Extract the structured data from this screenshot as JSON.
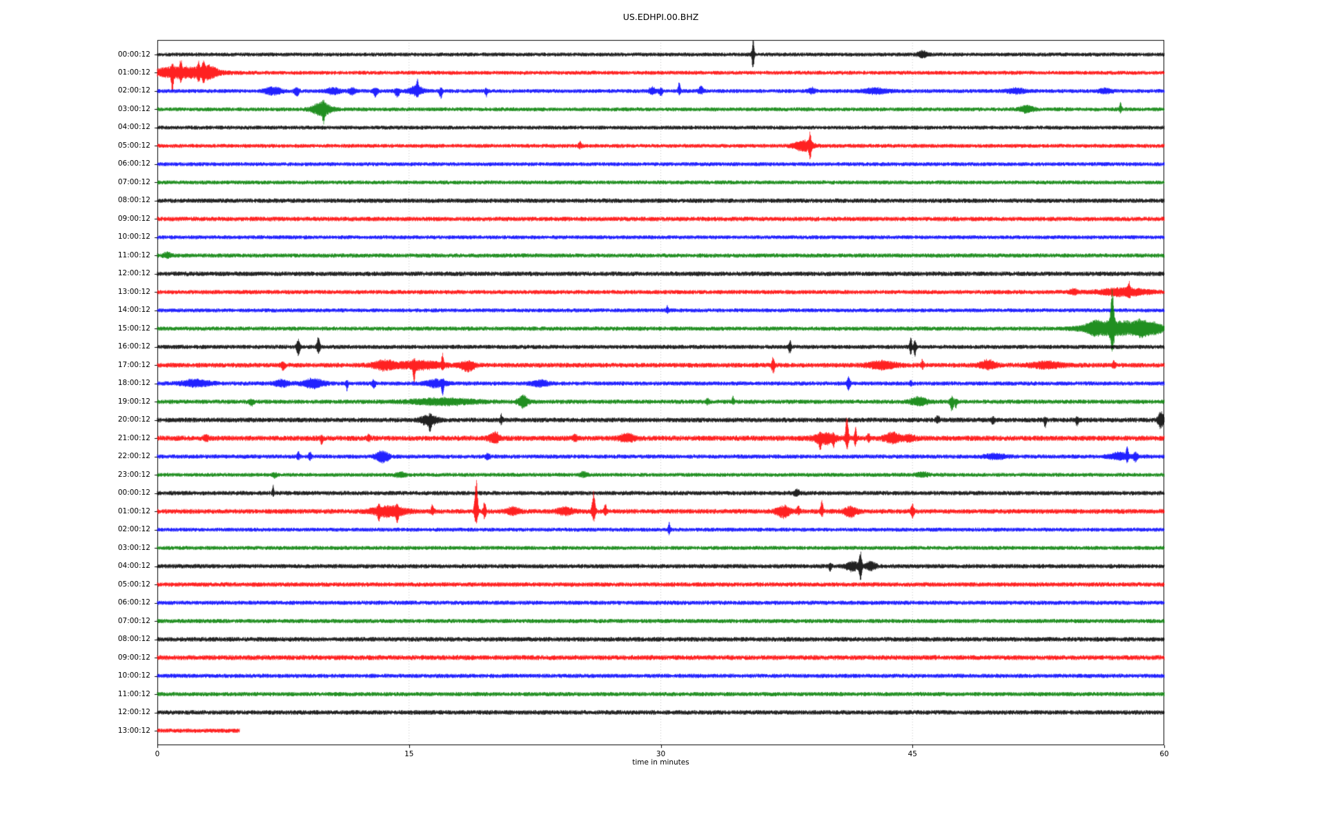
{
  "page": {
    "background": "#ffffff"
  },
  "chart_data": {
    "type": "line",
    "subtype": "seismogram-dayplot",
    "title": "US.EDHPI.00.BHZ",
    "xlabel": "time in minutes",
    "x_range": [
      0,
      60
    ],
    "x_ticks": [
      0,
      15,
      30,
      45,
      60
    ],
    "grid_x": [
      15,
      30,
      45
    ],
    "grid_on": true,
    "grid_color": "#b3b3b3",
    "axis_color": "#000000",
    "trace_color_cycle": [
      "#000000",
      "#ff0000",
      "#0000ff",
      "#008000"
    ],
    "color_map": {
      "k": "#000000",
      "r": "#ff0000",
      "b": "#0000ff",
      "g": "#008000"
    },
    "event_format": "[minute, width_minutes, up_px, down_px]",
    "rows": [
      {
        "label": "00:00:12",
        "color": "k",
        "noise": 3.0,
        "events": [
          [
            35.5,
            0.05,
            22,
            22
          ],
          [
            45.6,
            0.2,
            4,
            4
          ]
        ]
      },
      {
        "label": "01:00:12",
        "color": "r",
        "noise": 3.0,
        "events": [
          [
            1.5,
            1.3,
            8,
            7
          ],
          [
            0.9,
            0.05,
            7,
            26
          ],
          [
            1.4,
            0.05,
            13,
            8
          ],
          [
            2.45,
            0.05,
            12,
            9
          ],
          [
            2.75,
            0.05,
            14,
            10
          ],
          [
            3.1,
            0.3,
            7,
            6
          ]
        ]
      },
      {
        "label": "02:00:12",
        "color": "b",
        "noise": 3.0,
        "events": [
          [
            6.9,
            0.35,
            5,
            5
          ],
          [
            8.3,
            0.1,
            4,
            7
          ],
          [
            10.5,
            0.3,
            4,
            4
          ],
          [
            11.6,
            0.15,
            4,
            5
          ],
          [
            13.0,
            0.1,
            3,
            7
          ],
          [
            14.3,
            0.1,
            3,
            8
          ],
          [
            15.4,
            0.3,
            7,
            5
          ],
          [
            15.5,
            0.05,
            13,
            5
          ],
          [
            16.9,
            0.07,
            4,
            11
          ],
          [
            19.6,
            0.05,
            3,
            9
          ],
          [
            29.5,
            0.15,
            5,
            4
          ],
          [
            30.0,
            0.08,
            3,
            7
          ],
          [
            31.1,
            0.05,
            13,
            4
          ],
          [
            32.4,
            0.1,
            6,
            4
          ],
          [
            39.0,
            0.15,
            4,
            3
          ],
          [
            42.8,
            0.6,
            3,
            3
          ],
          [
            51.2,
            0.4,
            3,
            3
          ],
          [
            56.5,
            0.3,
            3,
            3
          ]
        ]
      },
      {
        "label": "03:00:12",
        "color": "g",
        "noise": 3.0,
        "events": [
          [
            9.8,
            0.4,
            9,
            9
          ],
          [
            9.9,
            0.05,
            5,
            13
          ],
          [
            51.8,
            0.3,
            5,
            4
          ],
          [
            57.4,
            0.05,
            10,
            4
          ]
        ]
      },
      {
        "label": "04:00:12",
        "color": "k",
        "noise": 3.0,
        "events": []
      },
      {
        "label": "05:00:12",
        "color": "r",
        "noise": 3.0,
        "events": [
          [
            25.2,
            0.08,
            5,
            3
          ],
          [
            38.5,
            0.4,
            7,
            7
          ],
          [
            38.9,
            0.05,
            17,
            19
          ]
        ]
      },
      {
        "label": "06:00:12",
        "color": "b",
        "noise": 3.0,
        "events": []
      },
      {
        "label": "07:00:12",
        "color": "g",
        "noise": 3.0,
        "events": []
      },
      {
        "label": "08:00:12",
        "color": "k",
        "noise": 3.4,
        "events": []
      },
      {
        "label": "09:00:12",
        "color": "r",
        "noise": 3.4,
        "events": []
      },
      {
        "label": "10:00:12",
        "color": "b",
        "noise": 3.0,
        "events": []
      },
      {
        "label": "11:00:12",
        "color": "g",
        "noise": 3.2,
        "events": [
          [
            0.6,
            0.15,
            4,
            3
          ]
        ]
      },
      {
        "label": "12:00:12",
        "color": "k",
        "noise": 3.5,
        "events": []
      },
      {
        "label": "13:00:12",
        "color": "r",
        "noise": 3.2,
        "events": [
          [
            54.6,
            0.2,
            4,
            3
          ],
          [
            57.6,
            1.0,
            5,
            5
          ],
          [
            57.9,
            0.06,
            9,
            5
          ]
        ]
      },
      {
        "label": "14:00:12",
        "color": "b",
        "noise": 3.0,
        "events": [
          [
            30.4,
            0.05,
            6,
            3
          ]
        ]
      },
      {
        "label": "15:00:12",
        "color": "g",
        "noise": 3.2,
        "events": [
          [
            55.8,
            0.3,
            5,
            5
          ],
          [
            57.1,
            1.2,
            11,
            9
          ],
          [
            56.9,
            0.08,
            50,
            28
          ],
          [
            58.6,
            0.3,
            7,
            7
          ],
          [
            59.4,
            0.4,
            6,
            6
          ]
        ]
      },
      {
        "label": "16:00:12",
        "color": "k",
        "noise": 3.2,
        "events": [
          [
            8.4,
            0.07,
            11,
            13
          ],
          [
            9.6,
            0.07,
            15,
            9
          ],
          [
            37.7,
            0.06,
            9,
            9
          ],
          [
            44.9,
            0.05,
            13,
            11
          ],
          [
            45.15,
            0.05,
            11,
            13
          ]
        ]
      },
      {
        "label": "17:00:12",
        "color": "r",
        "noise": 3.6,
        "events": [
          [
            7.5,
            0.1,
            3,
            6
          ],
          [
            13.5,
            0.45,
            6,
            6
          ],
          [
            15.6,
            1.0,
            5,
            5
          ],
          [
            15.3,
            0.05,
            5,
            21
          ],
          [
            17.0,
            0.05,
            15,
            5
          ],
          [
            18.5,
            0.3,
            5,
            8
          ],
          [
            36.7,
            0.07,
            10,
            10
          ],
          [
            43.2,
            0.6,
            5,
            5
          ],
          [
            45.6,
            0.05,
            8,
            4
          ],
          [
            49.5,
            0.35,
            6,
            5
          ],
          [
            53.0,
            0.7,
            4,
            4
          ],
          [
            57.0,
            0.07,
            6,
            4
          ]
        ]
      },
      {
        "label": "18:00:12",
        "color": "b",
        "noise": 3.2,
        "events": [
          [
            2.3,
            0.6,
            5,
            4
          ],
          [
            7.4,
            0.3,
            5,
            4
          ],
          [
            9.3,
            0.45,
            6,
            6
          ],
          [
            11.3,
            0.05,
            3,
            9
          ],
          [
            12.9,
            0.07,
            4,
            7
          ],
          [
            16.6,
            0.45,
            5,
            5
          ],
          [
            17.0,
            0.05,
            4,
            13
          ],
          [
            22.8,
            0.35,
            4,
            4
          ],
          [
            41.2,
            0.07,
            9,
            9
          ],
          [
            44.9,
            0.05,
            5,
            3
          ]
        ]
      },
      {
        "label": "19:00:12",
        "color": "g",
        "noise": 3.3,
        "events": [
          [
            5.6,
            0.1,
            2,
            5
          ],
          [
            17.0,
            1.4,
            4,
            4
          ],
          [
            21.8,
            0.22,
            8,
            8
          ],
          [
            32.8,
            0.07,
            4,
            3
          ],
          [
            34.3,
            0.05,
            7,
            3
          ],
          [
            45.4,
            0.35,
            6,
            5
          ],
          [
            47.35,
            0.08,
            6,
            12
          ],
          [
            47.6,
            0.05,
            3,
            8
          ]
        ]
      },
      {
        "label": "20:00:12",
        "color": "k",
        "noise": 3.6,
        "events": [
          [
            16.2,
            0.35,
            6,
            7
          ],
          [
            16.25,
            0.05,
            3,
            12
          ],
          [
            20.5,
            0.06,
            7,
            5
          ],
          [
            46.5,
            0.08,
            5,
            3
          ],
          [
            49.8,
            0.07,
            3,
            6
          ],
          [
            52.9,
            0.05,
            3,
            10
          ],
          [
            54.8,
            0.06,
            3,
            7
          ],
          [
            59.8,
            0.12,
            12,
            11
          ]
        ]
      },
      {
        "label": "21:00:12",
        "color": "r",
        "noise": 4.0,
        "events": [
          [
            2.9,
            0.1,
            4,
            3
          ],
          [
            9.8,
            0.05,
            2,
            8
          ],
          [
            12.6,
            0.07,
            5,
            3
          ],
          [
            20.1,
            0.22,
            8,
            6
          ],
          [
            24.9,
            0.1,
            4,
            3
          ],
          [
            28.0,
            0.35,
            5,
            4
          ],
          [
            39.8,
            0.45,
            6,
            8
          ],
          [
            39.5,
            0.05,
            3,
            12
          ],
          [
            40.3,
            0.05,
            3,
            10
          ],
          [
            41.1,
            0.06,
            38,
            17
          ],
          [
            41.6,
            0.05,
            16,
            12
          ],
          [
            42.4,
            0.06,
            7,
            5
          ],
          [
            43.8,
            0.35,
            7,
            6
          ],
          [
            44.8,
            0.25,
            4,
            4
          ]
        ]
      },
      {
        "label": "22:00:12",
        "color": "b",
        "noise": 3.2,
        "events": [
          [
            8.4,
            0.06,
            6,
            3
          ],
          [
            9.1,
            0.06,
            7,
            4
          ],
          [
            13.4,
            0.28,
            7,
            8
          ],
          [
            19.7,
            0.1,
            3,
            3
          ],
          [
            49.9,
            0.45,
            3,
            3
          ],
          [
            57.3,
            0.4,
            5,
            4
          ],
          [
            57.8,
            0.05,
            15,
            7
          ],
          [
            58.3,
            0.1,
            5,
            7
          ]
        ]
      },
      {
        "label": "23:00:12",
        "color": "g",
        "noise": 3.0,
        "events": [
          [
            7.0,
            0.1,
            2,
            4
          ],
          [
            14.5,
            0.2,
            3,
            3
          ],
          [
            25.4,
            0.15,
            4,
            2
          ],
          [
            45.6,
            0.3,
            3,
            2
          ]
        ]
      },
      {
        "label": "00:00:12",
        "color": "k",
        "noise": 3.3,
        "events": [
          [
            6.9,
            0.04,
            10,
            3
          ],
          [
            38.1,
            0.12,
            5,
            4
          ]
        ]
      },
      {
        "label": "01:00:12",
        "color": "r",
        "noise": 3.6,
        "events": [
          [
            13.8,
            0.7,
            7,
            7
          ],
          [
            13.2,
            0.05,
            5,
            9
          ],
          [
            14.3,
            0.05,
            7,
            15
          ],
          [
            16.4,
            0.07,
            8,
            3
          ],
          [
            19.0,
            0.07,
            50,
            21
          ],
          [
            19.5,
            0.06,
            13,
            9
          ],
          [
            21.2,
            0.3,
            5,
            4
          ],
          [
            24.3,
            0.35,
            5,
            4
          ],
          [
            26.0,
            0.07,
            28,
            15
          ],
          [
            26.7,
            0.06,
            9,
            5
          ],
          [
            37.3,
            0.3,
            7,
            8
          ],
          [
            38.2,
            0.07,
            8,
            3
          ],
          [
            39.6,
            0.06,
            15,
            6
          ],
          [
            41.3,
            0.28,
            5,
            7
          ],
          [
            45.0,
            0.07,
            9,
            8
          ]
        ]
      },
      {
        "label": "02:00:12",
        "color": "b",
        "noise": 3.0,
        "events": [
          [
            30.5,
            0.05,
            9,
            6
          ]
        ]
      },
      {
        "label": "03:00:12",
        "color": "g",
        "noise": 3.0,
        "events": []
      },
      {
        "label": "04:00:12",
        "color": "k",
        "noise": 3.3,
        "events": [
          [
            40.1,
            0.06,
            3,
            6
          ],
          [
            41.4,
            0.28,
            6,
            6
          ],
          [
            41.9,
            0.06,
            21,
            19
          ],
          [
            42.5,
            0.22,
            6,
            5
          ]
        ]
      },
      {
        "label": "05:00:12",
        "color": "r",
        "noise": 3.4,
        "events": []
      },
      {
        "label": "06:00:12",
        "color": "b",
        "noise": 3.2,
        "events": []
      },
      {
        "label": "07:00:12",
        "color": "g",
        "noise": 3.2,
        "events": []
      },
      {
        "label": "08:00:12",
        "color": "k",
        "noise": 3.5,
        "events": []
      },
      {
        "label": "09:00:12",
        "color": "r",
        "noise": 3.7,
        "events": []
      },
      {
        "label": "10:00:12",
        "color": "b",
        "noise": 3.2,
        "events": []
      },
      {
        "label": "11:00:12",
        "color": "g",
        "noise": 3.2,
        "events": []
      },
      {
        "label": "12:00:12",
        "color": "k",
        "noise": 3.4,
        "events": []
      },
      {
        "label": "13:00:12",
        "color": "r",
        "noise": 3.2,
        "end_minute": 4.9,
        "events": []
      }
    ]
  }
}
